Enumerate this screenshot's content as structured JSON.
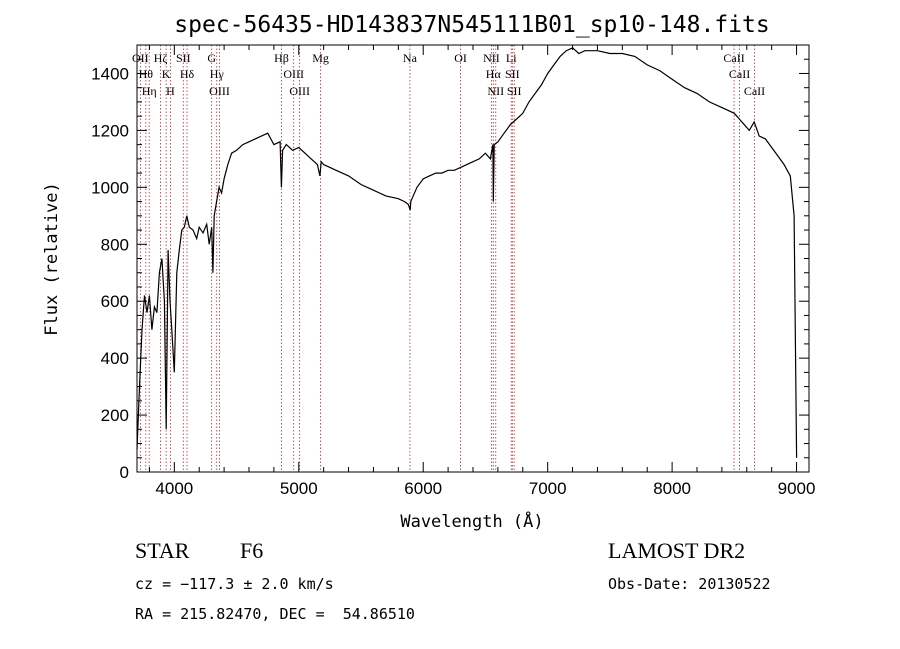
{
  "chart_data": {
    "type": "line",
    "title": "spec-56435-HD143837N545111B01_sp10-148.fits",
    "xlabel": "Wavelength (Å)",
    "ylabel": "Flux (relative)",
    "xlim": [
      3700,
      9100
    ],
    "ylim": [
      0,
      1500
    ],
    "xticks": [
      4000,
      5000,
      6000,
      7000,
      8000,
      9000
    ],
    "yticks": [
      0,
      200,
      400,
      600,
      800,
      1000,
      1200,
      1400
    ],
    "grid": false,
    "series": [
      {
        "x": [
          3700,
          3720,
          3740,
          3760,
          3780,
          3800,
          3820,
          3840,
          3860,
          3880,
          3900,
          3920,
          3935,
          3950,
          3965,
          3980,
          4000,
          4020,
          4040,
          4060,
          4080,
          4100,
          4120,
          4150,
          4180,
          4200,
          4230,
          4260,
          4280,
          4300,
          4310,
          4320,
          4340,
          4360,
          4380,
          4400,
          4430,
          4460,
          4500,
          4550,
          4600,
          4650,
          4700,
          4750,
          4800,
          4850,
          4860,
          4870,
          4900,
          4950,
          5000,
          5050,
          5100,
          5150,
          5170,
          5180,
          5200,
          5250,
          5300,
          5400,
          5500,
          5600,
          5700,
          5800,
          5850,
          5880,
          5895,
          5900,
          5910,
          5950,
          6000,
          6050,
          6100,
          6150,
          6200,
          6250,
          6300,
          6350,
          6400,
          6450,
          6500,
          6540,
          6560,
          6563,
          6570,
          6600,
          6650,
          6700,
          6750,
          6800,
          6850,
          6900,
          6950,
          7000,
          7050,
          7100,
          7150,
          7200,
          7250,
          7300,
          7400,
          7500,
          7600,
          7700,
          7800,
          7900,
          8000,
          8100,
          8200,
          8300,
          8400,
          8500,
          8540,
          8580,
          8620,
          8660,
          8700,
          8750,
          8800,
          8850,
          8900,
          8950,
          8980,
          9000
        ],
        "y": [
          80,
          300,
          500,
          620,
          560,
          620,
          500,
          580,
          560,
          700,
          750,
          600,
          150,
          780,
          600,
          500,
          350,
          700,
          780,
          850,
          860,
          900,
          860,
          850,
          820,
          860,
          840,
          870,
          800,
          860,
          700,
          900,
          950,
          1000,
          980,
          1030,
          1080,
          1120,
          1130,
          1150,
          1160,
          1170,
          1180,
          1190,
          1150,
          1160,
          1000,
          1130,
          1150,
          1130,
          1140,
          1120,
          1100,
          1080,
          1040,
          1090,
          1080,
          1070,
          1060,
          1040,
          1010,
          990,
          970,
          960,
          950,
          940,
          920,
          950,
          960,
          1000,
          1030,
          1040,
          1050,
          1050,
          1060,
          1060,
          1070,
          1080,
          1090,
          1100,
          1120,
          1100,
          1150,
          950,
          1150,
          1160,
          1190,
          1220,
          1240,
          1260,
          1300,
          1330,
          1360,
          1400,
          1430,
          1460,
          1480,
          1490,
          1470,
          1480,
          1480,
          1470,
          1470,
          1460,
          1430,
          1410,
          1380,
          1350,
          1330,
          1300,
          1280,
          1260,
          1240,
          1220,
          1200,
          1230,
          1180,
          1170,
          1140,
          1110,
          1080,
          1040,
          900,
          50
        ]
      }
    ],
    "line_markers": [
      {
        "x": 3727,
        "labels": [
          "OII"
        ]
      },
      {
        "x": 3771,
        "labels": [
          "Hθ"
        ]
      },
      {
        "x": 3798,
        "labels": [
          "Hη"
        ]
      },
      {
        "x": 3889,
        "labels": [
          "Hζ"
        ]
      },
      {
        "x": 3934,
        "labels": [
          "K"
        ]
      },
      {
        "x": 3969,
        "labels": [
          "H"
        ]
      },
      {
        "x": 4102,
        "labels": [
          "Hδ"
        ]
      },
      {
        "x": 4072,
        "labels": [
          "SII"
        ]
      },
      {
        "x": 4300,
        "labels": [
          "G"
        ]
      },
      {
        "x": 4341,
        "labels": [
          "Hγ"
        ]
      },
      {
        "x": 4363,
        "labels": [
          "OIII"
        ]
      },
      {
        "x": 4861,
        "labels": [
          "Hβ"
        ]
      },
      {
        "x": 4959,
        "labels": [
          "OIII"
        ]
      },
      {
        "x": 5007,
        "labels": [
          "OIII"
        ]
      },
      {
        "x": 5175,
        "labels": [
          "Mg"
        ]
      },
      {
        "x": 5893,
        "labels": [
          "Na"
        ]
      },
      {
        "x": 6300,
        "labels": [
          "OI"
        ]
      },
      {
        "x": 6548,
        "labels": [
          "NII"
        ]
      },
      {
        "x": 6563,
        "labels": [
          "Hα"
        ]
      },
      {
        "x": 6583,
        "labels": [
          "NII"
        ]
      },
      {
        "x": 6707,
        "labels": [
          "Li"
        ]
      },
      {
        "x": 6716,
        "labels": [
          "SII"
        ]
      },
      {
        "x": 6731,
        "labels": [
          "SII"
        ]
      },
      {
        "x": 8498,
        "labels": [
          "CaII"
        ]
      },
      {
        "x": 8542,
        "labels": [
          "CaII"
        ]
      },
      {
        "x": 8662,
        "labels": [
          "CaII"
        ]
      }
    ]
  },
  "info": {
    "class_label": "STAR",
    "subclass": "F6",
    "survey": "LAMOST DR2",
    "cz": "cz = −117.3 ± 2.0 km/s",
    "obs_date": "Obs-Date: 20130522",
    "coords": "RA = 215.82470, DEC =  54.86510"
  }
}
